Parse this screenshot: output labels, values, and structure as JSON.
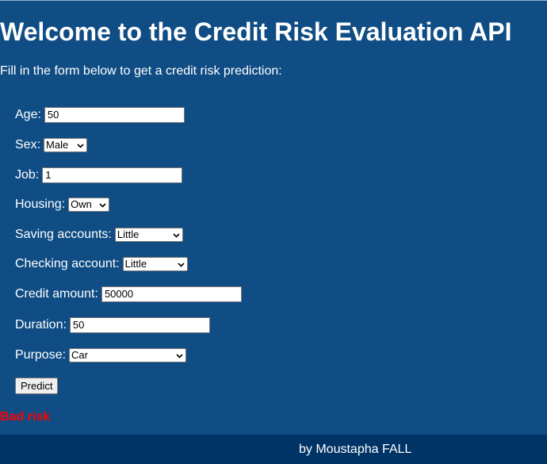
{
  "header": {
    "title": "Welcome to the Credit Risk Evaluation API",
    "intro": "Fill in the form below to get a credit risk prediction:"
  },
  "form": {
    "age": {
      "label": "Age:",
      "value": "50"
    },
    "sex": {
      "label": "Sex:",
      "selected": "Male"
    },
    "job": {
      "label": "Job:",
      "value": "1"
    },
    "housing": {
      "label": "Housing:",
      "selected": "Own"
    },
    "saving_accounts": {
      "label": "Saving accounts:",
      "selected": "Little"
    },
    "checking_account": {
      "label": "Checking account:",
      "selected": "Little"
    },
    "credit_amount": {
      "label": "Credit amount:",
      "value": "50000"
    },
    "duration": {
      "label": "Duration:",
      "value": "50"
    },
    "purpose": {
      "label": "Purpose:",
      "selected": "Car"
    },
    "submit_label": "Predict"
  },
  "result": {
    "text": "Bad risk",
    "color": "#ff0000"
  },
  "footer": {
    "credit": "by Moustapha FALL"
  },
  "icons": {
    "select_arrow": "chevron-down-icon"
  },
  "colors": {
    "background": "#0f4d84",
    "footer_background": "#003366",
    "text": "#ffffff"
  }
}
